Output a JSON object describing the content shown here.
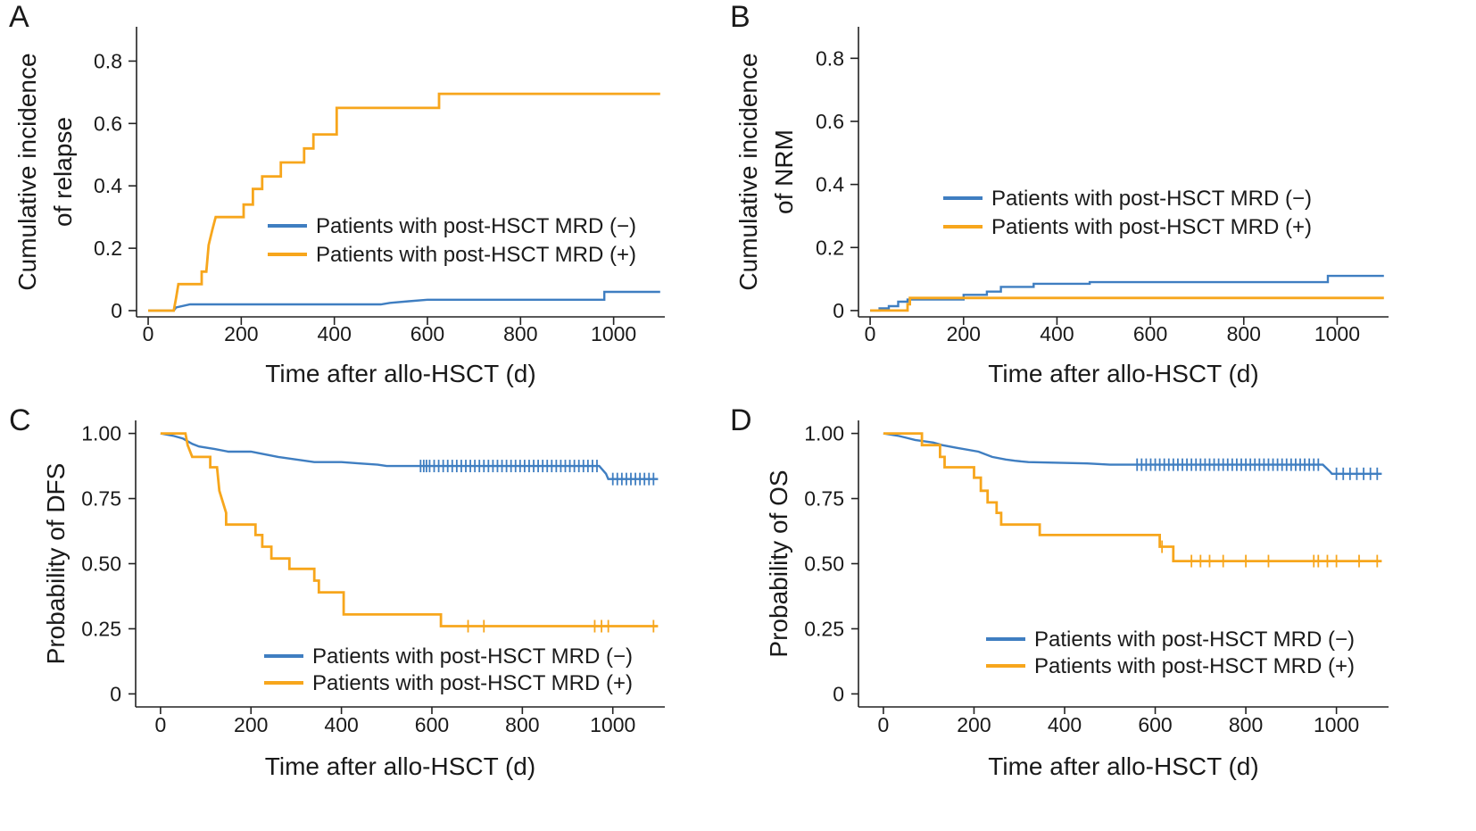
{
  "colors": {
    "mrd_neg": "#3f7ec1",
    "mrd_pos": "#f7a61c"
  },
  "chart_data": [
    {
      "panel": "A",
      "type": "line",
      "step": true,
      "xlabel": "Time after allo-HSCT (d)",
      "ylabel": [
        "Cumulative incidence",
        "of relapse"
      ],
      "xlim": [
        -25,
        1110
      ],
      "ylim": [
        -0.02,
        0.91
      ],
      "xticks": [
        0,
        200,
        400,
        600,
        800,
        1000
      ],
      "yticks": [
        0,
        0.2,
        0.4,
        0.6,
        0.8
      ],
      "ytick_labels": [
        "0",
        "0.2",
        "0.4",
        "0.6",
        "0.8"
      ],
      "legend": {
        "position": "center-right"
      },
      "series": [
        {
          "name": "Patients with post-HSCT MRD (−)",
          "color_key": "mrd_neg",
          "points": [
            [
              0,
              0
            ],
            [
              55,
              0
            ],
            [
              60,
              0.01
            ],
            [
              90,
              0.02
            ],
            [
              100,
              0.02
            ],
            [
              500,
              0.02
            ],
            [
              520,
              0.025
            ],
            [
              560,
              0.03
            ],
            [
              600,
              0.035
            ],
            [
              980,
              0.035
            ],
            [
              980,
              0.06
            ],
            [
              1100,
              0.06
            ]
          ]
        },
        {
          "name": "Patients with post-HSCT MRD (+)",
          "color_key": "mrd_pos",
          "points": [
            [
              0,
              0
            ],
            [
              55,
              0
            ],
            [
              60,
              0.04
            ],
            [
              65,
              0.085
            ],
            [
              115,
              0.085
            ],
            [
              115,
              0.125
            ],
            [
              125,
              0.125
            ],
            [
              130,
              0.21
            ],
            [
              138,
              0.26
            ],
            [
              145,
              0.3
            ],
            [
              205,
              0.3
            ],
            [
              205,
              0.34
            ],
            [
              225,
              0.34
            ],
            [
              225,
              0.39
            ],
            [
              245,
              0.39
            ],
            [
              245,
              0.43
            ],
            [
              285,
              0.43
            ],
            [
              285,
              0.475
            ],
            [
              335,
              0.475
            ],
            [
              335,
              0.52
            ],
            [
              355,
              0.52
            ],
            [
              355,
              0.565
            ],
            [
              405,
              0.565
            ],
            [
              405,
              0.65
            ],
            [
              625,
              0.65
            ],
            [
              625,
              0.695
            ],
            [
              1100,
              0.695
            ]
          ]
        }
      ]
    },
    {
      "panel": "B",
      "type": "line",
      "step": true,
      "xlabel": "Time after allo-HSCT (d)",
      "ylabel": [
        "Cumulative incidence",
        "of NRM"
      ],
      "xlim": [
        -25,
        1110
      ],
      "ylim": [
        -0.02,
        0.9
      ],
      "xticks": [
        0,
        200,
        400,
        600,
        800,
        1000
      ],
      "yticks": [
        0,
        0.2,
        0.4,
        0.6,
        0.8
      ],
      "ytick_labels": [
        "0",
        "0.2",
        "0.4",
        "0.6",
        "0.8"
      ],
      "legend": {
        "position": "center-right"
      },
      "series": [
        {
          "name": "Patients with post-HSCT MRD (−)",
          "color_key": "mrd_neg",
          "points": [
            [
              0,
              0
            ],
            [
              20,
              0
            ],
            [
              20,
              0.007
            ],
            [
              40,
              0.007
            ],
            [
              40,
              0.014
            ],
            [
              60,
              0.014
            ],
            [
              60,
              0.028
            ],
            [
              80,
              0.028
            ],
            [
              80,
              0.035
            ],
            [
              200,
              0.035
            ],
            [
              200,
              0.05
            ],
            [
              250,
              0.05
            ],
            [
              250,
              0.06
            ],
            [
              280,
              0.06
            ],
            [
              280,
              0.075
            ],
            [
              350,
              0.075
            ],
            [
              350,
              0.085
            ],
            [
              470,
              0.085
            ],
            [
              470,
              0.09
            ],
            [
              980,
              0.09
            ],
            [
              980,
              0.11
            ],
            [
              1100,
              0.11
            ]
          ]
        },
        {
          "name": "Patients with post-HSCT MRD (+)",
          "color_key": "mrd_pos",
          "points": [
            [
              0,
              0
            ],
            [
              80,
              0
            ],
            [
              80,
              0.02
            ],
            [
              85,
              0.02
            ],
            [
              85,
              0.04
            ],
            [
              1100,
              0.04
            ]
          ]
        }
      ]
    },
    {
      "panel": "C",
      "type": "line",
      "step": true,
      "xlabel": "Time after allo-HSCT (d)",
      "ylabel": [
        "Probability of DFS"
      ],
      "xlim": [
        -55,
        1115
      ],
      "ylim": [
        -0.05,
        1.05
      ],
      "xticks": [
        0,
        200,
        400,
        600,
        800,
        1000
      ],
      "yticks": [
        0,
        0.25,
        0.5,
        0.75,
        1.0
      ],
      "ytick_labels": [
        "0",
        "0.25",
        "0.50",
        "0.75",
        "1.00"
      ],
      "legend": {
        "position": "bottom-right"
      },
      "series": [
        {
          "name": "Patients with post-HSCT MRD (−)",
          "color_key": "mrd_neg",
          "points": [
            [
              0,
              1
            ],
            [
              30,
              0.99
            ],
            [
              50,
              0.98
            ],
            [
              70,
              0.96
            ],
            [
              85,
              0.95
            ],
            [
              120,
              0.94
            ],
            [
              150,
              0.93
            ],
            [
              200,
              0.93
            ],
            [
              230,
              0.92
            ],
            [
              260,
              0.91
            ],
            [
              300,
              0.9
            ],
            [
              340,
              0.89
            ],
            [
              400,
              0.89
            ],
            [
              440,
              0.885
            ],
            [
              480,
              0.88
            ],
            [
              500,
              0.875
            ],
            [
              970,
              0.875
            ],
            [
              985,
              0.845
            ],
            [
              990,
              0.825
            ],
            [
              1100,
              0.825
            ]
          ],
          "censored_x": [
            575,
            582,
            588,
            595,
            605,
            615,
            625,
            635,
            645,
            655,
            665,
            675,
            685,
            695,
            705,
            715,
            725,
            735,
            745,
            755,
            765,
            775,
            785,
            795,
            805,
            815,
            825,
            835,
            845,
            855,
            865,
            875,
            885,
            895,
            905,
            915,
            925,
            935,
            945,
            955,
            965,
            1000,
            1010,
            1020,
            1030,
            1040,
            1050,
            1060,
            1070,
            1080,
            1090
          ]
        },
        {
          "name": "Patients with post-HSCT MRD (+)",
          "color_key": "mrd_pos",
          "points": [
            [
              0,
              1
            ],
            [
              55,
              1
            ],
            [
              60,
              0.955
            ],
            [
              70,
              0.91
            ],
            [
              110,
              0.91
            ],
            [
              110,
              0.87
            ],
            [
              125,
              0.87
            ],
            [
              130,
              0.78
            ],
            [
              145,
              0.695
            ],
            [
              145,
              0.65
            ],
            [
              210,
              0.65
            ],
            [
              210,
              0.61
            ],
            [
              225,
              0.61
            ],
            [
              225,
              0.565
            ],
            [
              245,
              0.565
            ],
            [
              245,
              0.52
            ],
            [
              285,
              0.52
            ],
            [
              285,
              0.48
            ],
            [
              340,
              0.48
            ],
            [
              340,
              0.435
            ],
            [
              350,
              0.435
            ],
            [
              350,
              0.39
            ],
            [
              405,
              0.39
            ],
            [
              405,
              0.305
            ],
            [
              620,
              0.305
            ],
            [
              620,
              0.26
            ],
            [
              1100,
              0.26
            ]
          ],
          "censored_x": [
            680,
            715,
            960,
            975,
            990,
            1090
          ]
        }
      ]
    },
    {
      "panel": "D",
      "type": "line",
      "step": true,
      "xlabel": "Time after allo-HSCT (d)",
      "ylabel": [
        "Probability of OS"
      ],
      "xlim": [
        -55,
        1115
      ],
      "ylim": [
        -0.05,
        1.05
      ],
      "xticks": [
        0,
        200,
        400,
        600,
        800,
        1000
      ],
      "yticks": [
        0,
        0.25,
        0.5,
        0.75,
        1.0
      ],
      "ytick_labels": [
        "0",
        "0.25",
        "0.50",
        "0.75",
        "1.00"
      ],
      "legend": {
        "position": "bottom-right"
      },
      "series": [
        {
          "name": "Patients with post-HSCT MRD (−)",
          "color_key": "mrd_neg",
          "points": [
            [
              0,
              1
            ],
            [
              35,
              0.99
            ],
            [
              70,
              0.975
            ],
            [
              110,
              0.965
            ],
            [
              130,
              0.955
            ],
            [
              160,
              0.945
            ],
            [
              210,
              0.93
            ],
            [
              240,
              0.91
            ],
            [
              270,
              0.9
            ],
            [
              290,
              0.895
            ],
            [
              320,
              0.89
            ],
            [
              450,
              0.885
            ],
            [
              500,
              0.88
            ],
            [
              970,
              0.88
            ],
            [
              985,
              0.855
            ],
            [
              990,
              0.845
            ],
            [
              1100,
              0.845
            ]
          ],
          "censored_x": [
            560,
            570,
            580,
            590,
            600,
            610,
            620,
            630,
            640,
            650,
            660,
            670,
            680,
            690,
            700,
            710,
            720,
            730,
            740,
            750,
            760,
            770,
            780,
            790,
            800,
            810,
            820,
            830,
            840,
            850,
            860,
            870,
            880,
            890,
            900,
            910,
            920,
            930,
            940,
            950,
            960,
            1000,
            1015,
            1030,
            1045,
            1060,
            1075,
            1090
          ]
        },
        {
          "name": "Patients with post-HSCT MRD (+)",
          "color_key": "mrd_pos",
          "points": [
            [
              0,
              1
            ],
            [
              85,
              1
            ],
            [
              85,
              0.955
            ],
            [
              125,
              0.955
            ],
            [
              125,
              0.91
            ],
            [
              135,
              0.91
            ],
            [
              135,
              0.87
            ],
            [
              200,
              0.87
            ],
            [
              200,
              0.83
            ],
            [
              215,
              0.83
            ],
            [
              215,
              0.78
            ],
            [
              230,
              0.78
            ],
            [
              230,
              0.735
            ],
            [
              250,
              0.735
            ],
            [
              250,
              0.695
            ],
            [
              260,
              0.695
            ],
            [
              260,
              0.65
            ],
            [
              345,
              0.65
            ],
            [
              345,
              0.61
            ],
            [
              610,
              0.61
            ],
            [
              610,
              0.565
            ],
            [
              640,
              0.565
            ],
            [
              640,
              0.51
            ],
            [
              1100,
              0.51
            ]
          ],
          "censored_x": [
            615,
            680,
            700,
            720,
            750,
            800,
            850,
            950,
            960,
            980,
            1000,
            1050,
            1090
          ]
        }
      ]
    }
  ]
}
